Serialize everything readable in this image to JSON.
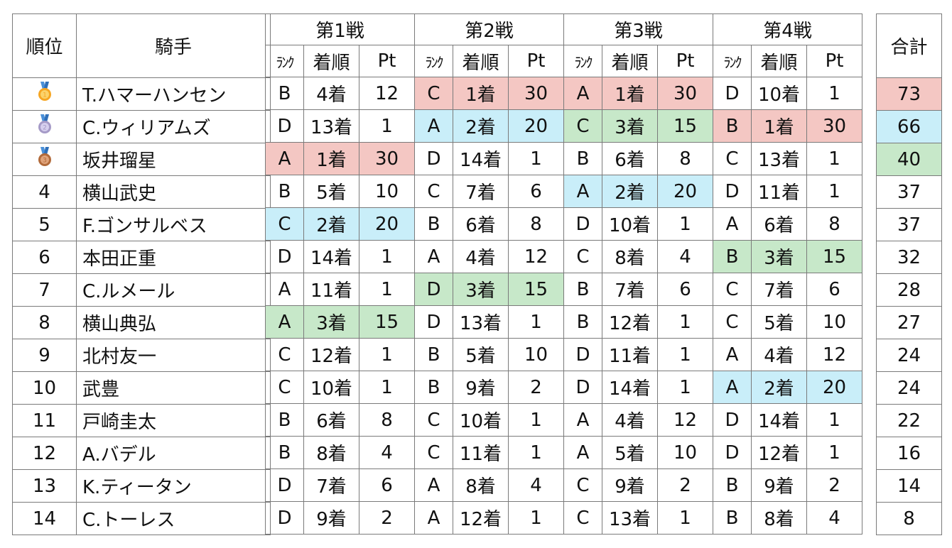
{
  "headers": {
    "rank": "順位",
    "jockey": "騎手",
    "total": "合計",
    "sub_rank": "ﾗﾝｸ",
    "sub_finish": "着順",
    "sub_pt": "Pt"
  },
  "races": [
    "第1戦",
    "第2戦",
    "第3戦",
    "第4戦"
  ],
  "medal_colors": {
    "gold": "#f4c7c3",
    "silver": "#c9eef9",
    "bronze": "#c7e8c9"
  },
  "rows": [
    {
      "pos": "",
      "medal": "gold-medal-icon",
      "name": "T.ハマーハンセン",
      "r": [
        [
          "B",
          "4着",
          "12",
          ""
        ],
        [
          "C",
          "1着",
          "30",
          "gold"
        ],
        [
          "A",
          "1着",
          "30",
          "gold"
        ],
        [
          "D",
          "10着",
          "1",
          ""
        ]
      ],
      "total": "73",
      "total_hl": "gold"
    },
    {
      "pos": "",
      "medal": "silver-medal-icon",
      "name": "C.ウィリアムズ",
      "r": [
        [
          "D",
          "13着",
          "1",
          ""
        ],
        [
          "A",
          "2着",
          "20",
          "silver"
        ],
        [
          "C",
          "3着",
          "15",
          "bronze"
        ],
        [
          "B",
          "1着",
          "30",
          "gold"
        ]
      ],
      "total": "66",
      "total_hl": "silver"
    },
    {
      "pos": "",
      "medal": "bronze-medal-icon",
      "name": "坂井瑠星",
      "r": [
        [
          "A",
          "1着",
          "30",
          "gold"
        ],
        [
          "D",
          "14着",
          "1",
          ""
        ],
        [
          "B",
          "6着",
          "8",
          ""
        ],
        [
          "C",
          "13着",
          "1",
          ""
        ]
      ],
      "total": "40",
      "total_hl": "bronze"
    },
    {
      "pos": "4",
      "medal": "",
      "name": "横山武史",
      "r": [
        [
          "B",
          "5着",
          "10",
          ""
        ],
        [
          "C",
          "7着",
          "6",
          ""
        ],
        [
          "A",
          "2着",
          "20",
          "silver"
        ],
        [
          "D",
          "11着",
          "1",
          ""
        ]
      ],
      "total": "37",
      "total_hl": ""
    },
    {
      "pos": "5",
      "medal": "",
      "name": "F.ゴンサルベス",
      "r": [
        [
          "C",
          "2着",
          "20",
          "silver"
        ],
        [
          "B",
          "6着",
          "8",
          ""
        ],
        [
          "D",
          "10着",
          "1",
          ""
        ],
        [
          "A",
          "6着",
          "8",
          ""
        ]
      ],
      "total": "37",
      "total_hl": ""
    },
    {
      "pos": "6",
      "medal": "",
      "name": "本田正重",
      "r": [
        [
          "D",
          "14着",
          "1",
          ""
        ],
        [
          "A",
          "4着",
          "12",
          ""
        ],
        [
          "C",
          "8着",
          "4",
          ""
        ],
        [
          "B",
          "3着",
          "15",
          "bronze"
        ]
      ],
      "total": "32",
      "total_hl": ""
    },
    {
      "pos": "7",
      "medal": "",
      "name": "C.ルメール",
      "r": [
        [
          "A",
          "11着",
          "1",
          ""
        ],
        [
          "D",
          "3着",
          "15",
          "bronze"
        ],
        [
          "B",
          "7着",
          "6",
          ""
        ],
        [
          "C",
          "7着",
          "6",
          ""
        ]
      ],
      "total": "28",
      "total_hl": ""
    },
    {
      "pos": "8",
      "medal": "",
      "name": "横山典弘",
      "r": [
        [
          "A",
          "3着",
          "15",
          "bronze"
        ],
        [
          "D",
          "13着",
          "1",
          ""
        ],
        [
          "B",
          "12着",
          "1",
          ""
        ],
        [
          "C",
          "5着",
          "10",
          ""
        ]
      ],
      "total": "27",
      "total_hl": ""
    },
    {
      "pos": "9",
      "medal": "",
      "name": "北村友一",
      "r": [
        [
          "C",
          "12着",
          "1",
          ""
        ],
        [
          "B",
          "5着",
          "10",
          ""
        ],
        [
          "D",
          "11着",
          "1",
          ""
        ],
        [
          "A",
          "4着",
          "12",
          ""
        ]
      ],
      "total": "24",
      "total_hl": ""
    },
    {
      "pos": "10",
      "medal": "",
      "name": "武豊",
      "r": [
        [
          "C",
          "10着",
          "1",
          ""
        ],
        [
          "B",
          "9着",
          "2",
          ""
        ],
        [
          "D",
          "14着",
          "1",
          ""
        ],
        [
          "A",
          "2着",
          "20",
          "silver"
        ]
      ],
      "total": "24",
      "total_hl": ""
    },
    {
      "pos": "11",
      "medal": "",
      "name": "戸崎圭太",
      "r": [
        [
          "B",
          "6着",
          "8",
          ""
        ],
        [
          "C",
          "10着",
          "1",
          ""
        ],
        [
          "A",
          "4着",
          "12",
          ""
        ],
        [
          "D",
          "14着",
          "1",
          ""
        ]
      ],
      "total": "22",
      "total_hl": ""
    },
    {
      "pos": "12",
      "medal": "",
      "name": "A.バデル",
      "r": [
        [
          "B",
          "8着",
          "4",
          ""
        ],
        [
          "C",
          "11着",
          "1",
          ""
        ],
        [
          "A",
          "5着",
          "10",
          ""
        ],
        [
          "D",
          "12着",
          "1",
          ""
        ]
      ],
      "total": "16",
      "total_hl": ""
    },
    {
      "pos": "13",
      "medal": "",
      "name": "K.ティータン",
      "r": [
        [
          "D",
          "7着",
          "6",
          ""
        ],
        [
          "A",
          "8着",
          "4",
          ""
        ],
        [
          "C",
          "9着",
          "2",
          ""
        ],
        [
          "B",
          "9着",
          "2",
          ""
        ]
      ],
      "total": "14",
      "total_hl": ""
    },
    {
      "pos": "14",
      "medal": "",
      "name": "C.トーレス",
      "r": [
        [
          "D",
          "9着",
          "2",
          ""
        ],
        [
          "A",
          "12着",
          "1",
          ""
        ],
        [
          "C",
          "13着",
          "1",
          ""
        ],
        [
          "B",
          "8着",
          "4",
          ""
        ]
      ],
      "total": "8",
      "total_hl": ""
    }
  ]
}
